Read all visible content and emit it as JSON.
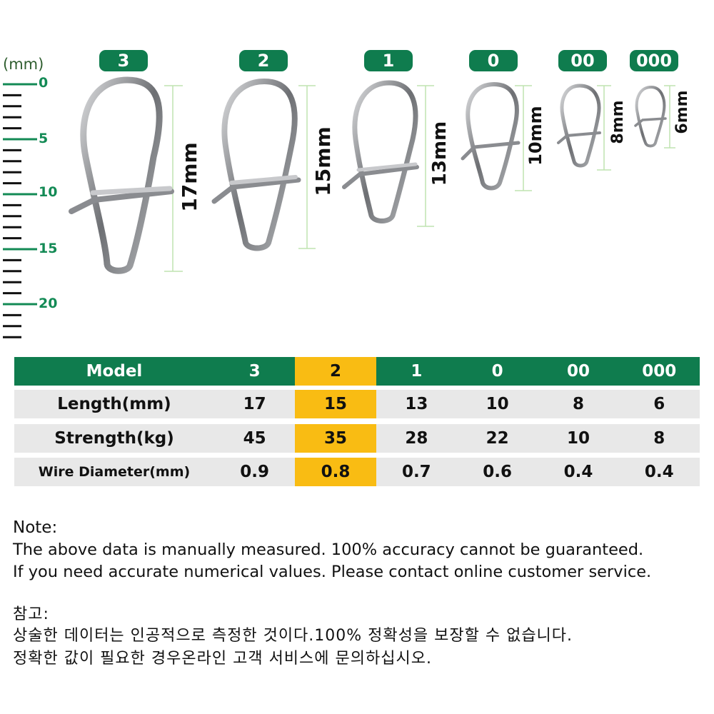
{
  "ruler": {
    "unit": "(mm)",
    "labels": [
      "0",
      "5",
      "10",
      "15",
      "20"
    ]
  },
  "models": [
    {
      "name": "3",
      "length_label": "17mm"
    },
    {
      "name": "2",
      "length_label": "15mm"
    },
    {
      "name": "1",
      "length_label": "13mm"
    },
    {
      "name": "0",
      "length_label": "10mm"
    },
    {
      "name": "00",
      "length_label": "8mm"
    },
    {
      "name": "000",
      "length_label": "6mm"
    }
  ],
  "table": {
    "header": {
      "label": "Model",
      "values": [
        "3",
        "2",
        "1",
        "0",
        "00",
        "000"
      ]
    },
    "rows": [
      {
        "label": "Length(mm)",
        "values": [
          "17",
          "15",
          "13",
          "10",
          "8",
          "6"
        ]
      },
      {
        "label": "Strength(kg)",
        "values": [
          "45",
          "35",
          "28",
          "22",
          "10",
          "8"
        ]
      },
      {
        "label": "Wire Diameter(mm)",
        "values": [
          "0.9",
          "0.8",
          "0.7",
          "0.6",
          "0.4",
          "0.4"
        ]
      }
    ],
    "highlight_color": "#f9bc13",
    "header_color": "#0f7c4e"
  },
  "note": {
    "title": "Note:",
    "line1": "The above data is manually measured. 100% accuracy cannot be guaranteed.",
    "line2": "If you need accurate numerical values. Please contact online customer service."
  },
  "note_kr": {
    "title": "참고:",
    "line1": "상술한 데이터는 인공적으로 측정한 것이다.100% 정확성을 보장할 수 없습니다.",
    "line2": "정확한 값이 필요한 경우온라인 고객 서비스에 문의하십시오."
  }
}
